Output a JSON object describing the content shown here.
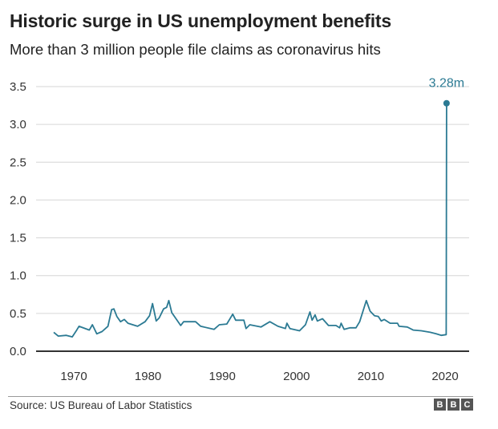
{
  "chart_data": {
    "type": "line",
    "title": "Historic surge in US unemployment benefits",
    "subtitle": "More than 3 million people file claims as coronavirus hits",
    "xlabel": "",
    "ylabel": "",
    "xlim": [
      1966,
      2023.5
    ],
    "ylim": [
      0,
      3.5
    ],
    "x_ticks": [
      1970,
      1980,
      1990,
      2000,
      2010,
      2020
    ],
    "y_ticks": [
      0.0,
      0.5,
      1.0,
      1.5,
      2.0,
      2.5,
      3.0,
      3.5
    ],
    "y_tick_labels": [
      "0.0",
      "0.5",
      "1.0",
      "1.5",
      "2.0",
      "2.5",
      "3.0",
      "3.5"
    ],
    "grid": "horizontal",
    "line_color": "#2b7a93",
    "annotation": {
      "text": "3.28m",
      "x": 2020.2,
      "y": 3.28
    },
    "series": [
      {
        "x": [
          1967.3,
          1967.9,
          1969.0,
          1969.8,
          1970.4,
          1970.7,
          1972.1,
          1972.5,
          1973.1,
          1973.8,
          1974.6,
          1975.1,
          1975.4,
          1975.8,
          1976.3,
          1976.8,
          1977.3,
          1978.6,
          1979.6,
          1980.2,
          1980.6,
          1981.1,
          1981.5,
          1982.1,
          1982.5,
          1982.8,
          1983.2,
          1984.4,
          1984.8,
          1986.4,
          1987.1,
          1988.9,
          1989.6,
          1990.6,
          1991.4,
          1991.8,
          1992.9,
          1993.2,
          1993.7,
          1995.2,
          1996.4,
          1997.5,
          1998.5,
          1998.7,
          1999.1,
          2000.4,
          2001.2,
          2001.8,
          2002.1,
          2002.5,
          2002.8,
          2003.5,
          2004.3,
          2005.3,
          2005.8,
          2006.0,
          2006.4,
          2007.2,
          2008.0,
          2008.5,
          2009.4,
          2009.9,
          2010.5,
          2011.0,
          2011.4,
          2011.8,
          2012.6,
          2013.6,
          2013.8,
          2014.9,
          2015.7,
          2016.8,
          2018.0,
          2018.8,
          2019.5,
          2020.15,
          2020.2
        ],
        "values": [
          0.25,
          0.2,
          0.21,
          0.19,
          0.28,
          0.33,
          0.28,
          0.35,
          0.23,
          0.26,
          0.33,
          0.55,
          0.56,
          0.46,
          0.39,
          0.42,
          0.37,
          0.33,
          0.39,
          0.47,
          0.63,
          0.4,
          0.44,
          0.56,
          0.58,
          0.67,
          0.51,
          0.34,
          0.39,
          0.39,
          0.33,
          0.29,
          0.35,
          0.36,
          0.49,
          0.41,
          0.41,
          0.3,
          0.35,
          0.32,
          0.39,
          0.33,
          0.3,
          0.37,
          0.3,
          0.27,
          0.35,
          0.52,
          0.41,
          0.48,
          0.4,
          0.43,
          0.34,
          0.34,
          0.31,
          0.37,
          0.29,
          0.31,
          0.31,
          0.39,
          0.67,
          0.53,
          0.47,
          0.46,
          0.4,
          0.42,
          0.37,
          0.37,
          0.33,
          0.32,
          0.28,
          0.27,
          0.25,
          0.23,
          0.21,
          0.22,
          3.28
        ]
      }
    ]
  },
  "footer": {
    "source": "Source: US Bureau of Labor Statistics",
    "logo": "BBC"
  }
}
